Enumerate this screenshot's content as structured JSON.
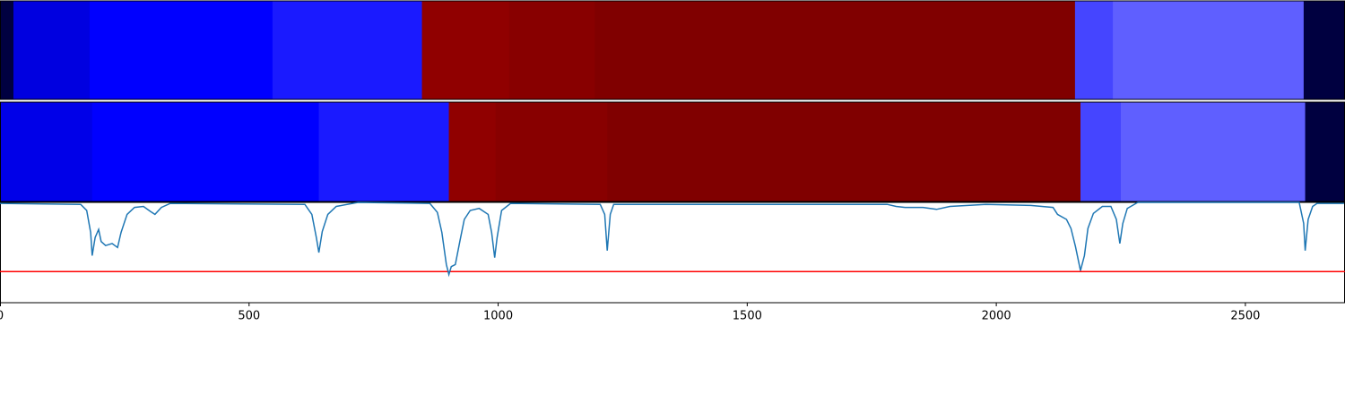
{
  "chart_data": {
    "type": "line",
    "segments": [
      {
        "edges": [
          0,
          27,
          180,
          547,
          847,
          1022,
          1194,
          2158,
          2234,
          2617,
          2700
        ],
        "colors": [
          "#000040",
          "#0000e0",
          "#0000ff",
          "#1a1aff",
          "#900000",
          "#880000",
          "#800000",
          "#4545ff",
          "#5f5fff",
          "#000040"
        ]
      },
      {
        "edges": [
          0,
          185,
          640,
          901,
          995,
          1219,
          2169,
          2250,
          2620,
          2700
        ],
        "colors": [
          "#0000e8",
          "#0000ff",
          "#1a1aff",
          "#900000",
          "#880000",
          "#800000",
          "#4545ff",
          "#5f5fff",
          "#000040"
        ]
      }
    ],
    "x": [
      0,
      162,
      174,
      182,
      185,
      191,
      198,
      203,
      212,
      225,
      236,
      243,
      255,
      270,
      288,
      302,
      311,
      324,
      342,
      612,
      626,
      635,
      640,
      647,
      658,
      675,
      719,
      863,
      878,
      887,
      896,
      901,
      906,
      914,
      923,
      932,
      944,
      962,
      980,
      987,
      993,
      998,
      1007,
      1025,
      1205,
      1214,
      1219,
      1225,
      1232,
      1781,
      1799,
      1817,
      1853,
      1880,
      1907,
      1979,
      2069,
      2114,
      2123,
      2141,
      2150,
      2159,
      2169,
      2177,
      2184,
      2195,
      2213,
      2230,
      2241,
      2248,
      2254,
      2263,
      2284,
      2608,
      2617,
      2620,
      2626,
      2635,
      2644,
      2698
    ],
    "values": [
      0.99,
      0.98,
      0.92,
      0.7,
      0.47,
      0.65,
      0.73,
      0.61,
      0.57,
      0.59,
      0.55,
      0.7,
      0.88,
      0.95,
      0.96,
      0.91,
      0.88,
      0.95,
      0.99,
      0.98,
      0.88,
      0.65,
      0.5,
      0.71,
      0.88,
      0.96,
      1.0,
      0.99,
      0.9,
      0.7,
      0.38,
      0.28,
      0.36,
      0.38,
      0.61,
      0.83,
      0.92,
      0.94,
      0.88,
      0.7,
      0.45,
      0.65,
      0.92,
      0.99,
      0.98,
      0.88,
      0.52,
      0.88,
      0.98,
      0.98,
      0.96,
      0.95,
      0.95,
      0.93,
      0.96,
      0.98,
      0.97,
      0.95,
      0.88,
      0.83,
      0.74,
      0.56,
      0.32,
      0.47,
      0.74,
      0.89,
      0.96,
      0.96,
      0.83,
      0.59,
      0.79,
      0.94,
      1.0,
      1.0,
      0.79,
      0.52,
      0.83,
      0.96,
      0.99,
      0.99
    ],
    "color": "#1f77b4",
    "hline": 0.31,
    "hline_color": "#ff0000",
    "xlim": [
      0,
      2700
    ],
    "ylim": [
      0,
      1
    ],
    "xticks": [
      0,
      500,
      1000,
      1500,
      2000,
      2500
    ]
  }
}
